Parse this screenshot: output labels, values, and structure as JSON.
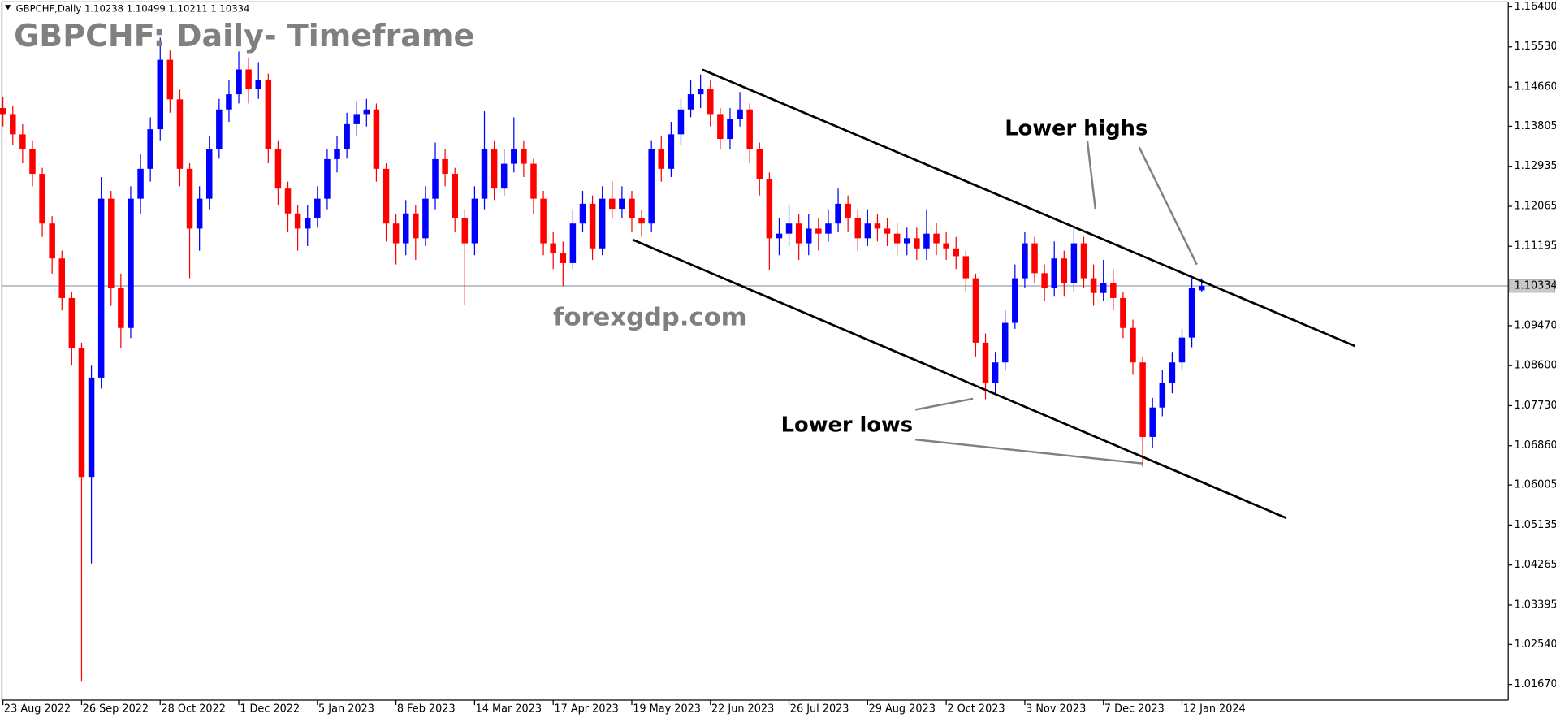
{
  "chart_data": {
    "type": "candlestick",
    "symbol_label": "GBPCHF,Daily 1.10238 1.10499 1.10211 1.10334",
    "title": "GBPCHF: Daily- Timeframe",
    "watermark": "forexgdp.com",
    "annotations": [
      "Lower highs",
      "Lower lows"
    ],
    "up_color": "#0000ff",
    "down_color": "#ff0000",
    "grid": false,
    "xlim": [
      0,
      153
    ],
    "ylim": [
      1.0135,
      1.1655
    ],
    "xticks": [
      {
        "value": 0,
        "label": "23 Aug 2022"
      },
      {
        "value": 8,
        "label": "26 Sep 2022"
      },
      {
        "value": 16,
        "label": "28 Oct 2022"
      },
      {
        "value": 24,
        "label": "1 Dec 2022"
      },
      {
        "value": 32,
        "label": "5 Jan 2023"
      },
      {
        "value": 40,
        "label": "8 Feb 2023"
      },
      {
        "value": 48,
        "label": "14 Mar 2023"
      },
      {
        "value": 56,
        "label": "17 Apr 2023"
      },
      {
        "value": 64,
        "label": "19 May 2023"
      },
      {
        "value": 72,
        "label": "22 Jun 2023"
      },
      {
        "value": 80,
        "label": "26 Jul 2023"
      },
      {
        "value": 88,
        "label": "29 Aug 2023"
      },
      {
        "value": 96,
        "label": "2 Oct 2023"
      },
      {
        "value": 104,
        "label": "3 Nov 2023"
      },
      {
        "value": 112,
        "label": "7 Dec 2023"
      },
      {
        "value": 120,
        "label": "12 Jan 2024"
      }
    ],
    "yticks": [
      {
        "value": 1.164,
        "label": "1.16400"
      },
      {
        "value": 1.1553,
        "label": "1.15530"
      },
      {
        "value": 1.1466,
        "label": "1.14660"
      },
      1.13805,
      1.12935,
      1.12065,
      1.11195,
      {
        "value": 1.0947,
        "label": "1.09470"
      },
      {
        "value": 1.086,
        "label": "1.08600"
      },
      {
        "value": 1.0773,
        "label": "1.07730"
      },
      {
        "value": 1.0686,
        "label": "1.06860"
      },
      1.06005,
      1.05135,
      1.04265,
      1.03395,
      {
        "value": 1.0254,
        "label": "1.02540"
      },
      {
        "value": 1.0167,
        "label": "1.01670"
      }
    ],
    "current_price": {
      "value": 1.10334,
      "label": "1.10334"
    },
    "open": [
      1.142,
      1.1407,
      1.1363,
      1.1331,
      1.1277,
      1.1169,
      1.1093,
      1.1007,
      1.0899,
      1.0618,
      1.0834,
      1.1223,
      1.1029,
      1.0942,
      1.1223,
      1.1288,
      1.1374,
      1.1525,
      1.1439,
      1.1288,
      1.1158,
      1.1223,
      1.1331,
      1.1417,
      1.145,
      1.1504,
      1.1461,
      1.1482,
      1.1331,
      1.1245,
      1.1191,
      1.1158,
      1.118,
      1.1223,
      1.1309,
      1.1331,
      1.1385,
      1.1407,
      1.1417,
      1.1288,
      1.1169,
      1.1126,
      1.1191,
      1.1137,
      1.1223,
      1.1309,
      1.1277,
      1.118,
      1.1126,
      1.1223,
      1.1331,
      1.1245,
      1.1299,
      1.1331,
      1.1299,
      1.1223,
      1.1126,
      1.1104,
      1.1083,
      1.1169,
      1.1212,
      1.1115,
      1.1223,
      1.1201,
      1.1223,
      1.118,
      1.1169,
      1.1331,
      1.1288,
      1.1363,
      1.1417,
      1.145,
      1.1461,
      1.1407,
      1.1353,
      1.1396,
      1.1417,
      1.1331,
      1.1266,
      1.1137,
      1.1147,
      1.1169,
      1.1126,
      1.1158,
      1.1147,
      1.1169,
      1.1212,
      1.118,
      1.1137,
      1.1169,
      1.1158,
      1.1147,
      1.1126,
      1.1137,
      1.1115,
      1.1147,
      1.1126,
      1.1115,
      1.1098,
      1.105,
      1.091,
      1.0823,
      1.0867,
      1.0953,
      1.105,
      1.1126,
      1.1061,
      1.1029,
      1.1093,
      1.1039,
      1.1126,
      1.105,
      1.1018,
      1.1039,
      1.1007,
      1.0942,
      1.0867,
      1.0705,
      1.0769,
      1.0823,
      1.0867,
      1.0921,
      1.10238
    ],
    "high": [
      1.1445,
      1.1425,
      1.1385,
      1.135,
      1.129,
      1.1185,
      1.111,
      1.102,
      1.091,
      1.086,
      1.127,
      1.124,
      1.106,
      1.125,
      1.132,
      1.14,
      1.1573,
      1.1545,
      1.146,
      1.13,
      1.125,
      1.136,
      1.144,
      1.148,
      1.1543,
      1.153,
      1.152,
      1.1495,
      1.135,
      1.126,
      1.121,
      1.121,
      1.125,
      1.133,
      1.136,
      1.141,
      1.1435,
      1.144,
      1.143,
      1.13,
      1.119,
      1.122,
      1.121,
      1.125,
      1.1345,
      1.133,
      1.129,
      1.12,
      1.125,
      1.1413,
      1.135,
      1.133,
      1.14,
      1.135,
      1.131,
      1.124,
      1.115,
      1.113,
      1.12,
      1.124,
      1.123,
      1.125,
      1.126,
      1.125,
      1.124,
      1.12,
      1.135,
      1.136,
      1.139,
      1.144,
      1.148,
      1.1493,
      1.148,
      1.142,
      1.142,
      1.1455,
      1.143,
      1.1345,
      1.128,
      1.118,
      1.121,
      1.119,
      1.119,
      1.118,
      1.12,
      1.1245,
      1.123,
      1.12,
      1.12,
      1.119,
      1.118,
      1.117,
      1.116,
      1.116,
      1.12,
      1.117,
      1.115,
      1.114,
      1.111,
      1.106,
      1.093,
      1.089,
      1.098,
      1.108,
      1.115,
      1.114,
      1.108,
      1.113,
      1.111,
      1.1158,
      1.114,
      1.108,
      1.109,
      1.107,
      1.102,
      1.096,
      1.088,
      1.079,
      1.085,
      1.089,
      1.094,
      1.105,
      1.10499
    ],
    "low": [
      1.138,
      1.134,
      1.13,
      1.125,
      1.114,
      1.106,
      1.098,
      1.086,
      1.0173,
      1.043,
      1.081,
      1.099,
      1.0899,
      1.092,
      1.119,
      1.126,
      1.135,
      1.141,
      1.125,
      1.105,
      1.111,
      1.12,
      1.131,
      1.139,
      1.143,
      1.143,
      1.144,
      1.13,
      1.121,
      1.115,
      1.111,
      1.112,
      1.116,
      1.12,
      1.128,
      1.131,
      1.136,
      1.138,
      1.126,
      1.113,
      1.108,
      1.11,
      1.109,
      1.112,
      1.12,
      1.125,
      1.115,
      1.0992,
      1.11,
      1.12,
      1.122,
      1.123,
      1.128,
      1.127,
      1.119,
      1.11,
      1.107,
      1.1033,
      1.107,
      1.115,
      1.109,
      1.11,
      1.118,
      1.118,
      1.115,
      1.114,
      1.115,
      1.126,
      1.127,
      1.134,
      1.14,
      1.142,
      1.138,
      1.133,
      1.133,
      1.138,
      1.13,
      1.123,
      1.1068,
      1.11,
      1.112,
      1.109,
      1.11,
      1.111,
      1.113,
      1.115,
      1.115,
      1.111,
      1.112,
      1.113,
      1.112,
      1.11,
      1.11,
      1.109,
      1.109,
      1.11,
      1.109,
      1.107,
      1.102,
      1.088,
      1.0787,
      1.08,
      1.085,
      1.094,
      1.103,
      1.104,
      1.1,
      1.101,
      1.101,
      1.102,
      1.103,
      1.099,
      1.1,
      1.098,
      1.092,
      1.084,
      1.064,
      1.068,
      1.075,
      1.08,
      1.085,
      1.09,
      1.10211
    ],
    "close": [
      1.1407,
      1.1363,
      1.1331,
      1.1277,
      1.1169,
      1.1093,
      1.1007,
      1.0899,
      1.0618,
      1.0834,
      1.1223,
      1.1029,
      1.0942,
      1.1223,
      1.1288,
      1.1374,
      1.1525,
      1.1439,
      1.1288,
      1.1158,
      1.1223,
      1.1331,
      1.1417,
      1.145,
      1.1504,
      1.1461,
      1.1482,
      1.1331,
      1.1245,
      1.1191,
      1.1158,
      1.118,
      1.1223,
      1.1309,
      1.1331,
      1.1385,
      1.1407,
      1.1417,
      1.1288,
      1.1169,
      1.1126,
      1.1191,
      1.1137,
      1.1223,
      1.1309,
      1.1277,
      1.118,
      1.1126,
      1.1223,
      1.1331,
      1.1245,
      1.1299,
      1.1331,
      1.1299,
      1.1223,
      1.1126,
      1.1104,
      1.1083,
      1.1169,
      1.1212,
      1.1115,
      1.1223,
      1.1201,
      1.1223,
      1.118,
      1.1169,
      1.1331,
      1.1288,
      1.1363,
      1.1417,
      1.145,
      1.1461,
      1.1407,
      1.1353,
      1.1396,
      1.1417,
      1.1331,
      1.1266,
      1.1137,
      1.1147,
      1.1169,
      1.1126,
      1.1158,
      1.1147,
      1.1169,
      1.1212,
      1.118,
      1.1137,
      1.1169,
      1.1158,
      1.1147,
      1.1126,
      1.1137,
      1.1115,
      1.1147,
      1.1126,
      1.1115,
      1.1098,
      1.105,
      1.091,
      1.0823,
      1.0867,
      1.0953,
      1.105,
      1.1126,
      1.1061,
      1.1029,
      1.1093,
      1.1039,
      1.1126,
      1.105,
      1.1018,
      1.1039,
      1.1007,
      1.0942,
      1.0867,
      1.0705,
      1.0769,
      1.0823,
      1.0867,
      1.0921,
      1.1029,
      1.10334
    ]
  }
}
